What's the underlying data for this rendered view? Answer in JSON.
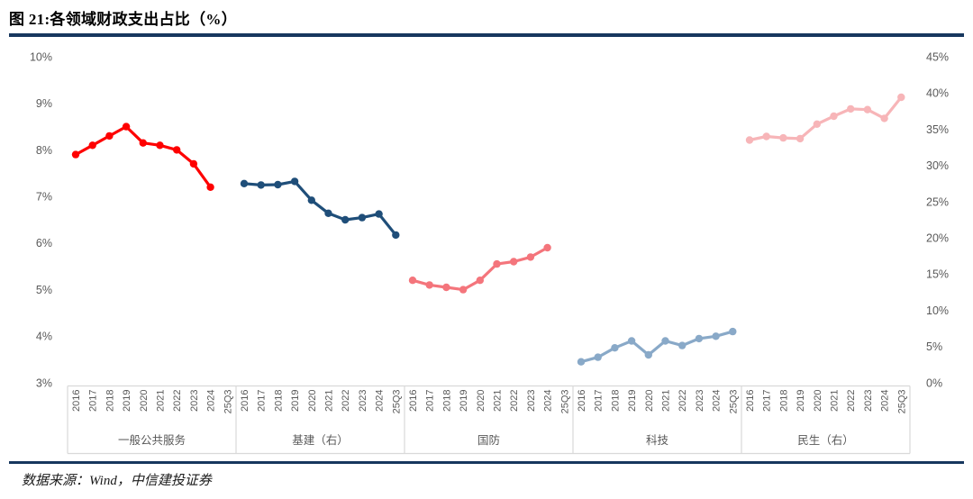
{
  "title": "图 21:各领域财政支出占比（%）",
  "source": "数据来源：Wind，中信建投证券",
  "colors": {
    "accent_rule": "#17375e",
    "axis_text": "#595959",
    "frame_line": "#d9d9d9",
    "background": "#ffffff"
  },
  "chart_data": {
    "type": "line",
    "title": "图 21:各领域财政支出占比（%）",
    "grid": false,
    "legend_position": "none",
    "left_axis": {
      "ticks": [
        "10%",
        "9%",
        "8%",
        "7%",
        "6%",
        "5%",
        "4%",
        "3%"
      ],
      "max": 10,
      "min": 3
    },
    "right_axis": {
      "ticks": [
        "45%",
        "40%",
        "35%",
        "30%",
        "25%",
        "20%",
        "15%",
        "10%",
        "5%",
        "0%"
      ],
      "max": 45,
      "min": 0
    },
    "categories": [
      "2016",
      "2017",
      "2018",
      "2019",
      "2020",
      "2021",
      "2022",
      "2023",
      "2024",
      "25Q3"
    ],
    "groups": [
      {
        "label": "一般公共服务",
        "axis": "left",
        "color": "#fe0000",
        "values": [
          7.9,
          8.1,
          8.3,
          8.5,
          8.15,
          8.1,
          8.0,
          7.7,
          7.2,
          null
        ]
      },
      {
        "label": "基建（右）",
        "axis": "right",
        "color": "#1f4e79",
        "values": [
          27.5,
          27.3,
          27.35,
          27.8,
          25.2,
          23.4,
          22.5,
          22.8,
          23.3,
          20.4
        ]
      },
      {
        "label": "国防",
        "axis": "left",
        "color": "#f4757c",
        "values": [
          5.2,
          5.1,
          5.05,
          5.0,
          5.2,
          5.55,
          5.6,
          5.7,
          5.9,
          null
        ]
      },
      {
        "label": "科技",
        "axis": "left",
        "color": "#89a9c8",
        "values": [
          3.45,
          3.55,
          3.75,
          3.9,
          3.6,
          3.9,
          3.8,
          3.95,
          4.0,
          4.1
        ]
      },
      {
        "label": "民生（右）",
        "axis": "right",
        "color": "#f7b5b8",
        "values": [
          33.5,
          34.0,
          33.8,
          33.7,
          35.7,
          36.8,
          37.8,
          37.7,
          36.5,
          39.4
        ]
      }
    ]
  }
}
